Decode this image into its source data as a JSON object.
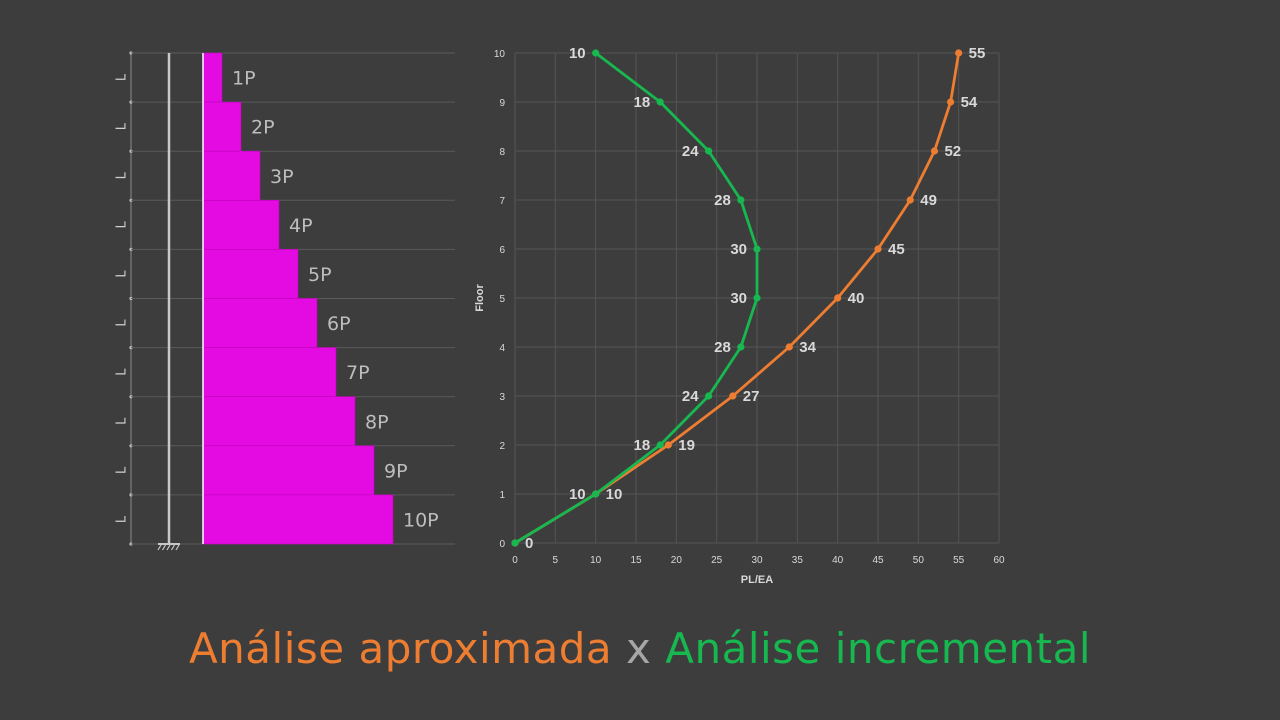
{
  "colors": {
    "background": "#3d3d3d",
    "grid": "#555555",
    "bars": "#e40be2",
    "approx": "#ed7d31",
    "incremental": "#17b84f",
    "caption_sep": "#a6a6a6",
    "text": "#d9d9d9",
    "bar_label": "#bdbdbd"
  },
  "structure": {
    "span_label": "L",
    "span_count": 10,
    "loads": [
      "1P",
      "2P",
      "3P",
      "4P",
      "5P",
      "6P",
      "7P",
      "8P",
      "9P",
      "10P"
    ],
    "load_values": [
      1,
      2,
      3,
      4,
      5,
      6,
      7,
      8,
      9,
      10
    ],
    "support_icon": "fixed-support-icon"
  },
  "chart_data": {
    "type": "line",
    "xlabel": "PL/EA",
    "ylabel": "Floor",
    "xlim": [
      0,
      60
    ],
    "ylim": [
      0,
      10
    ],
    "xticks": [
      0,
      5,
      10,
      15,
      20,
      25,
      30,
      35,
      40,
      45,
      50,
      55,
      60
    ],
    "yticks": [
      0,
      1,
      2,
      3,
      4,
      5,
      6,
      7,
      8,
      9,
      10
    ],
    "grid": true,
    "series": [
      {
        "key": "approx",
        "color": "#ed7d31",
        "x": [
          0,
          10,
          19,
          27,
          34,
          40,
          45,
          49,
          52,
          54,
          55
        ],
        "y": [
          0,
          1,
          2,
          3,
          4,
          5,
          6,
          7,
          8,
          9,
          10
        ],
        "labels": [
          "0",
          "10",
          "19",
          "27",
          "34",
          "40",
          "45",
          "49",
          "52",
          "54",
          "55"
        ]
      },
      {
        "key": "incremental",
        "color": "#17b84f",
        "x": [
          0,
          10,
          18,
          24,
          28,
          30,
          30,
          28,
          24,
          18,
          10
        ],
        "y": [
          0,
          1,
          2,
          3,
          4,
          5,
          6,
          7,
          8,
          9,
          10
        ],
        "labels": [
          "",
          "10",
          "18",
          "24",
          "28",
          "30",
          "30",
          "28",
          "24",
          "18",
          "10"
        ]
      }
    ]
  },
  "caption": {
    "left": "Análise aproximada",
    "sep": " x ",
    "right": "Análise incremental"
  }
}
